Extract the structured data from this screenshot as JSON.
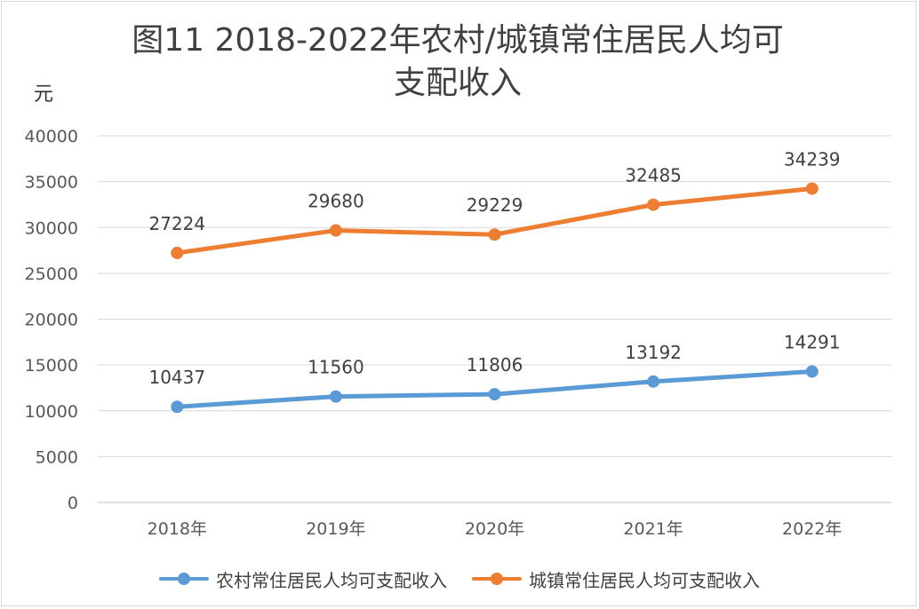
{
  "page": {
    "title_line1": "图11  2018-2022年农村/城镇常住居民人均可",
    "title_line2": "支配收入",
    "unit_label": "元"
  },
  "chart_data": {
    "type": "line",
    "title": "图11  2018-2022年农村/城镇常住居民人均可支配收入",
    "xlabel": "",
    "ylabel": "元",
    "categories": [
      "2018年",
      "2019年",
      "2020年",
      "2021年",
      "2022年"
    ],
    "ylim": [
      0,
      40000
    ],
    "yticks": [
      0,
      5000,
      10000,
      15000,
      20000,
      25000,
      30000,
      35000,
      40000
    ],
    "grid": true,
    "legend_position": "bottom",
    "series": [
      {
        "name": "农村常住居民人均可支配收入",
        "color": "#5b9bd5",
        "values": [
          10437,
          11560,
          11806,
          13192,
          14291
        ]
      },
      {
        "name": "城镇常住居民人均可支配收入",
        "color": "#ed7d31",
        "values": [
          27224,
          29680,
          29229,
          32485,
          34239
        ]
      }
    ]
  }
}
